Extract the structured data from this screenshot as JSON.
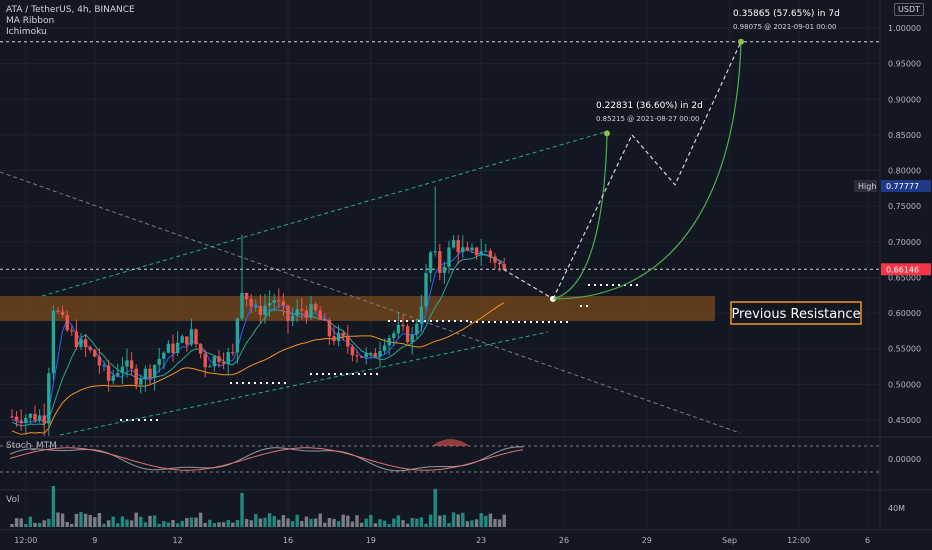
{
  "header": {
    "title": "ATA / TetherUS, 4h, BINANCE",
    "indicators": [
      "MA Ribbon",
      "Ichimoku"
    ],
    "currency": "USDT"
  },
  "panes": {
    "stoch_label": "Stoch_MTM",
    "vol_label": "Vol"
  },
  "labels": {
    "high_tag": "High",
    "high_value": "0.77777",
    "current_price": "0.66146",
    "resistance": "Previous Resistance",
    "target1_main": "0.22831 (36.60%) in 2d",
    "target1_sub": "0.85215 @ 2021-08-27  00:00",
    "target2_main": "0.35865 (57.65%) in 7d",
    "target2_sub": "0.98075 @ 2021-09-01  00:00",
    "vol_tick": "40M",
    "stoch_tick": "0.00000"
  },
  "colors": {
    "background": "#131722",
    "up": "#26a69a",
    "down": "#ef5350",
    "resistance_zone": "#7a4a19",
    "resistance_border": "#f7931a",
    "projection_line": "#4caf50",
    "current_price_tag": "#f23645",
    "channel": "#26a69a",
    "ribbon_fast": "#2962ff",
    "ribbon_mid": "#26a69a",
    "ribbon_slow": "#f7931a"
  },
  "chart_data": {
    "type": "candlestick",
    "title": "ATA / TetherUS, 4h, BINANCE",
    "y_axis": {
      "ticks": [
        "1.00000",
        "0.95000",
        "0.90000",
        "0.85000",
        "0.80000",
        "0.75000",
        "0.70000",
        "0.65000",
        "0.60000",
        "0.55000",
        "0.50000",
        "0.45000"
      ],
      "range": [
        0.42,
        1.02
      ]
    },
    "x_axis": {
      "ticks": [
        "12:00",
        "9",
        "12",
        "16",
        "19",
        "23",
        "26",
        "29",
        "Sep",
        "12:00",
        "6"
      ],
      "range_days_from_aug6": [
        0,
        34
      ]
    },
    "price_anchors": [
      {
        "t": 0.0,
        "p": 0.455
      },
      {
        "t": 1.2,
        "p": 0.455
      },
      {
        "t": 1.5,
        "p": 0.61
      },
      {
        "t": 2.0,
        "p": 0.575
      },
      {
        "t": 2.5,
        "p": 0.555
      },
      {
        "t": 3.0,
        "p": 0.54
      },
      {
        "t": 3.5,
        "p": 0.505
      },
      {
        "t": 4.0,
        "p": 0.53
      },
      {
        "t": 4.5,
        "p": 0.51
      },
      {
        "t": 5.0,
        "p": 0.52
      },
      {
        "t": 5.5,
        "p": 0.545
      },
      {
        "t": 6.0,
        "p": 0.555
      },
      {
        "t": 6.5,
        "p": 0.57
      },
      {
        "t": 7.0,
        "p": 0.53
      },
      {
        "t": 7.5,
        "p": 0.54
      },
      {
        "t": 8.0,
        "p": 0.54
      },
      {
        "t": 8.3,
        "p": 0.64
      },
      {
        "t": 8.8,
        "p": 0.6
      },
      {
        "t": 9.5,
        "p": 0.62
      },
      {
        "t": 10.0,
        "p": 0.59
      },
      {
        "t": 10.5,
        "p": 0.605
      },
      {
        "t": 11.0,
        "p": 0.6
      },
      {
        "t": 11.5,
        "p": 0.57
      },
      {
        "t": 12.0,
        "p": 0.56
      },
      {
        "t": 12.5,
        "p": 0.545
      },
      {
        "t": 13.0,
        "p": 0.535
      },
      {
        "t": 13.5,
        "p": 0.565
      },
      {
        "t": 14.0,
        "p": 0.575
      },
      {
        "t": 14.5,
        "p": 0.565
      },
      {
        "t": 14.8,
        "p": 0.61
      },
      {
        "t": 15.2,
        "p": 0.69
      },
      {
        "t": 15.5,
        "p": 0.66
      },
      {
        "t": 16.0,
        "p": 0.7
      },
      {
        "t": 16.5,
        "p": 0.68
      },
      {
        "t": 17.0,
        "p": 0.69
      },
      {
        "t": 17.5,
        "p": 0.675
      },
      {
        "t": 17.8,
        "p": 0.661
      }
    ],
    "high_price": 0.77777,
    "last_price": 0.66146,
    "resistance_zone": [
      0.589,
      0.624
    ],
    "projections": [
      {
        "label": "0.22831 (36.60%) in 2d",
        "from_price": 0.62384,
        "to_price": 0.85215,
        "to_date": "2021-08-27 00:00",
        "change_pct": 36.6
      },
      {
        "label": "0.35865 (57.65%) in 7d",
        "from_price": 0.6221,
        "to_price": 0.98075,
        "to_date": "2021-09-01 00:00",
        "change_pct": 57.65
      }
    ],
    "indicator_series": [
      "MA Ribbon",
      "Ichimoku",
      "Stoch_MTM",
      "Vol"
    ]
  }
}
